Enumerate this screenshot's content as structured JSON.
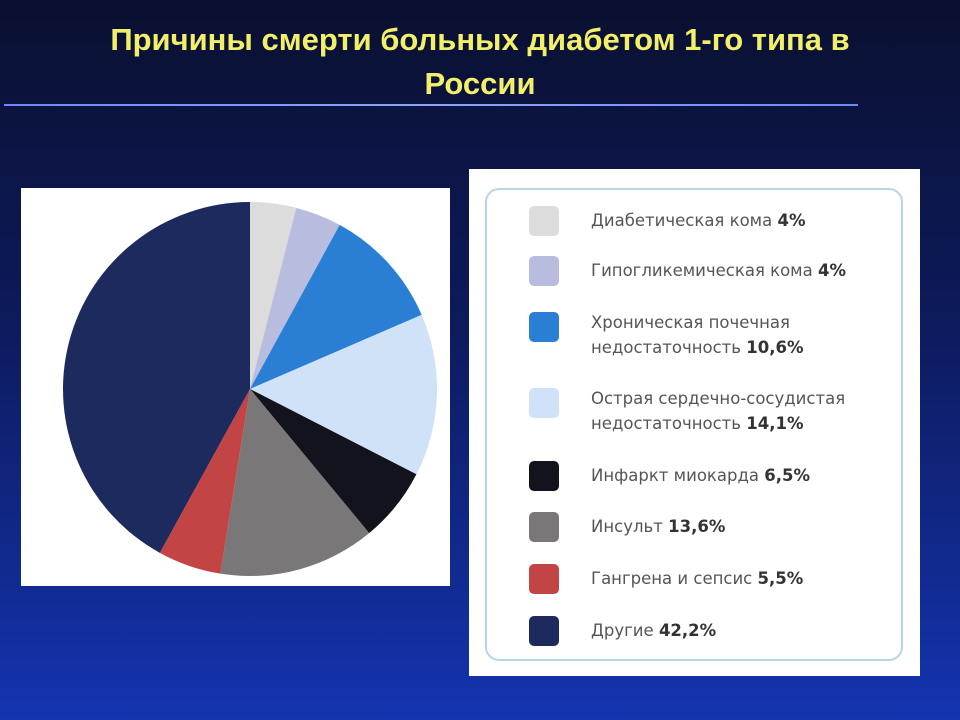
{
  "slide": {
    "title": "Причины смерти больных диабетом 1-го типа в России"
  },
  "chart_data": {
    "type": "pie",
    "title": "Причины смерти больных диабетом 1-го типа в России",
    "slices": [
      {
        "label": "Диабетическая кома",
        "value": 4,
        "value_label": "4%",
        "color": "#dcdcdc"
      },
      {
        "label": "Гипогликемическая кома",
        "value": 4,
        "value_label": "4%",
        "color": "#b8bde0"
      },
      {
        "label": "Хроническая почечная недостаточность",
        "value": 10.6,
        "value_label": "10,6%",
        "color": "#2a7fd4"
      },
      {
        "label": "Острая сердечно-сосудистая недостаточность",
        "value": 14.1,
        "value_label": "14,1%",
        "color": "#cfe2f7"
      },
      {
        "label": "Инфаркт миокарда",
        "value": 6.5,
        "value_label": "6,5%",
        "color": "#12131c"
      },
      {
        "label": "Инсульт",
        "value": 13.6,
        "value_label": "13,6%",
        "color": "#7a7778"
      },
      {
        "label": "Гангрена и сепсис",
        "value": 5.5,
        "value_label": "5,5%",
        "color": "#c24444"
      },
      {
        "label": "Другие",
        "value": 42.2,
        "value_label": "42,2%",
        "color": "#1d2a5e"
      }
    ]
  },
  "legend": {
    "items": [
      {
        "line1": "Диабетическая кома",
        "line2": "",
        "value": "4%"
      },
      {
        "line1": "Гипогликемическая кома",
        "line2": "",
        "value": "4%"
      },
      {
        "line1": "Хроническая почечная",
        "line2": "недостаточность",
        "value": "10,6%"
      },
      {
        "line1": "Острая сердечно-сосудистая",
        "line2": "недостаточность",
        "value": "14,1%"
      },
      {
        "line1": "Инфаркт миокарда",
        "line2": "",
        "value": "6,5%"
      },
      {
        "line1": "Инсульт",
        "line2": "",
        "value": "13,6%"
      },
      {
        "line1": "Гангрена и сепсис",
        "line2": "",
        "value": "5,5%"
      },
      {
        "line1": "Другие",
        "line2": "",
        "value": "42,2%"
      }
    ]
  }
}
